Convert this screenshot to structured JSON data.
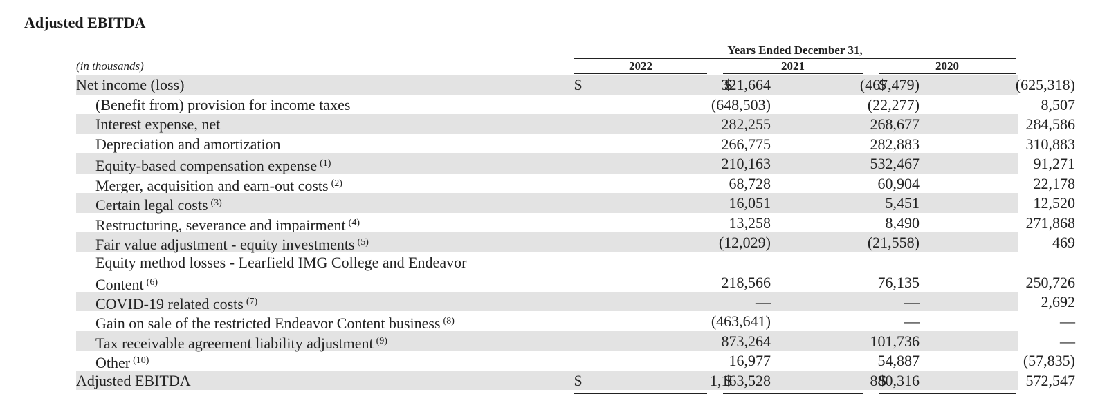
{
  "title": "Adjusted EBITDA",
  "period_header": "Years Ended December 31,",
  "units_label": "(in thousands)",
  "years": [
    "2022",
    "2021",
    "2020"
  ],
  "currency_symbol": "$",
  "rows": [
    {
      "label": "Net income (loss)",
      "note": "",
      "indent": false,
      "values": [
        "321,664",
        "(467,479)",
        "(625,318)"
      ],
      "currency": true
    },
    {
      "label": "(Benefit from) provision for income taxes",
      "note": "",
      "indent": true,
      "values": [
        "(648,503)",
        "(22,277)",
        "8,507"
      ],
      "currency": false
    },
    {
      "label": "Interest expense, net",
      "note": "",
      "indent": true,
      "values": [
        "282,255",
        "268,677",
        "284,586"
      ],
      "currency": false
    },
    {
      "label": "Depreciation and amortization",
      "note": "",
      "indent": true,
      "values": [
        "266,775",
        "282,883",
        "310,883"
      ],
      "currency": false
    },
    {
      "label": "Equity-based compensation expense",
      "note": "(1)",
      "indent": true,
      "values": [
        "210,163",
        "532,467",
        "91,271"
      ],
      "currency": false
    },
    {
      "label": "Merger, acquisition and earn-out costs",
      "note": "(2)",
      "indent": true,
      "values": [
        "68,728",
        "60,904",
        "22,178"
      ],
      "currency": false
    },
    {
      "label": "Certain legal costs",
      "note": "(3)",
      "indent": true,
      "values": [
        "16,051",
        "5,451",
        "12,520"
      ],
      "currency": false
    },
    {
      "label": "Restructuring, severance and impairment",
      "note": "(4)",
      "indent": true,
      "values": [
        "13,258",
        "8,490",
        "271,868"
      ],
      "currency": false
    },
    {
      "label": "Fair value adjustment - equity investments",
      "note": "(5)",
      "indent": true,
      "values": [
        "(12,029)",
        "(21,558)",
        "469"
      ],
      "currency": false
    },
    {
      "label": "Equity method losses - Learfield IMG College and Endeavor",
      "label2": "Content",
      "note": "(6)",
      "indent": true,
      "values": [
        "218,566",
        "76,135",
        "250,726"
      ],
      "currency": false
    },
    {
      "label": "COVID-19 related costs",
      "note": "(7)",
      "indent": true,
      "values": [
        "—",
        "—",
        "2,692"
      ],
      "currency": false
    },
    {
      "label": "Gain on sale of the restricted Endeavor Content business",
      "note": "(8)",
      "indent": true,
      "values": [
        "(463,641)",
        "—",
        "—"
      ],
      "currency": false
    },
    {
      "label": "Tax receivable agreement liability adjustment",
      "note": "(9)",
      "indent": true,
      "values": [
        "873,264",
        "101,736",
        "—"
      ],
      "currency": false
    },
    {
      "label": "Other",
      "note": "(10)",
      "indent": true,
      "values": [
        "16,977",
        "54,887",
        "(57,835)"
      ],
      "currency": false
    },
    {
      "label": "Adjusted EBITDA",
      "note": "",
      "indent": false,
      "values": [
        "1,163,528",
        "880,316",
        "572,547"
      ],
      "currency": true
    }
  ]
}
